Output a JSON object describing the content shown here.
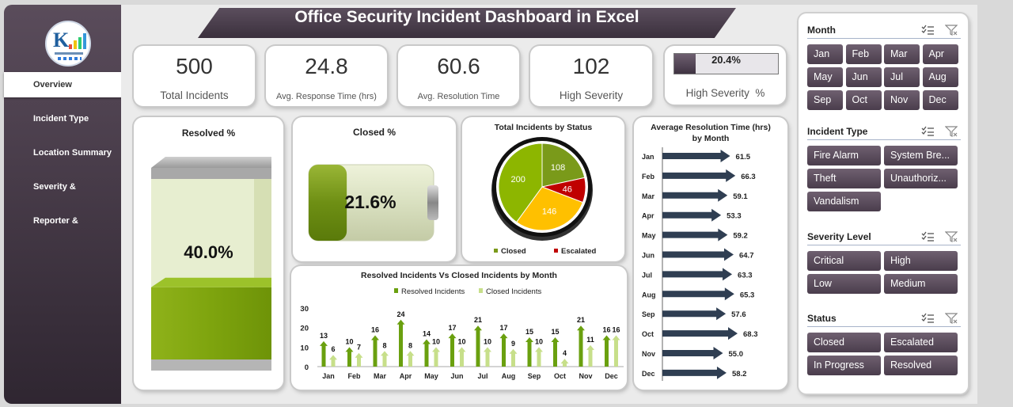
{
  "title": "Office Security Incident Dashboard in Excel",
  "nav": [
    {
      "label": "Overview",
      "active": true
    },
    {
      "label": "Incident Type"
    },
    {
      "label": "Location Summary"
    },
    {
      "label": "Severity &"
    },
    {
      "label": "Reporter &"
    }
  ],
  "kpis": [
    {
      "value": "500",
      "label": "Total Incidents"
    },
    {
      "value": "24.8",
      "label": "Avg. Response Time (hrs)"
    },
    {
      "value": "60.6",
      "label": "Avg. Resolution Time"
    },
    {
      "value": "102",
      "label": "High Severity"
    }
  ],
  "high_severity_pct": {
    "value": "20.4%",
    "fraction": 0.204,
    "label": "High Severity  %"
  },
  "resolved": {
    "title": "Resolved %",
    "value": "40.0%",
    "fraction": 0.4
  },
  "closed": {
    "title": "Closed %",
    "value": "21.6%",
    "fraction": 0.216
  },
  "colors": {
    "accent": "#4a3d4c",
    "green": "#8db600",
    "yellow": "#ffc000",
    "red": "#c00000",
    "olive": "#7a9a1a"
  },
  "chart_data": [
    {
      "type": "pie",
      "title": "Total Incidents by Status",
      "slices": [
        {
          "name": "Closed",
          "value": 108,
          "color": "#7a9a1a"
        },
        {
          "name": "Escalated",
          "value": 46,
          "color": "#c00000"
        },
        {
          "name": "",
          "value": 146,
          "color": "#ffc000"
        },
        {
          "name": "",
          "value": 200,
          "color": "#8db600"
        }
      ],
      "legend": [
        {
          "name": "Closed",
          "color": "#7a9a1a"
        },
        {
          "name": "Escalated",
          "color": "#c00000"
        }
      ],
      "legend_position": "bottom"
    },
    {
      "type": "bar",
      "title": "Average Resolution Time (hrs) by Month",
      "orientation": "horizontal",
      "categories": [
        "Jan",
        "Feb",
        "Mar",
        "Apr",
        "May",
        "Jun",
        "Jul",
        "Aug",
        "Sep",
        "Oct",
        "Nov",
        "Dec"
      ],
      "values": [
        61.5,
        66.3,
        59.1,
        53.3,
        59.2,
        64.7,
        63.3,
        65.3,
        57.6,
        68.3,
        55.0,
        58.2
      ],
      "labels": [
        "61.5",
        "66.3",
        "59.1",
        "53.3",
        "59.2",
        "64.7",
        "63.3",
        "65.3",
        "57.6",
        "68.3",
        "55.0",
        "58.2"
      ]
    },
    {
      "type": "bar",
      "title": "Resolved Incidents Vs Closed Incidents by Month",
      "categories": [
        "Jan",
        "Feb",
        "Mar",
        "Apr",
        "May",
        "Jun",
        "Jul",
        "Aug",
        "Sep",
        "Oct",
        "Nov",
        "Dec"
      ],
      "series": [
        {
          "name": "Resolved Incidents",
          "values": [
            13,
            10,
            16,
            24,
            14,
            17,
            21,
            17,
            15,
            15,
            21,
            16
          ]
        },
        {
          "name": "Closed Incidents",
          "values": [
            6,
            7,
            8,
            8,
            10,
            10,
            10,
            9,
            10,
            4,
            11,
            16
          ]
        }
      ],
      "yticks": [
        "0",
        "10",
        "20",
        "30"
      ],
      "ylim": [
        0,
        30
      ],
      "legend_position": "top"
    }
  ],
  "slicers": [
    {
      "title": "Month",
      "items": [
        "Jan",
        "Feb",
        "Mar",
        "Apr",
        "May",
        "Jun",
        "Jul",
        "Aug",
        "Sep",
        "Oct",
        "Nov",
        "Dec"
      ],
      "cols": 4
    },
    {
      "title": "Incident Type",
      "items": [
        "Fire Alarm",
        "System Bre...",
        "Theft",
        "Unauthoriz...",
        "Vandalism"
      ],
      "cols": 2
    },
    {
      "title": "Severity Level",
      "items": [
        "Critical",
        "High",
        "Low",
        "Medium"
      ],
      "cols": 2
    },
    {
      "title": "Status",
      "items": [
        "Closed",
        "Escalated",
        "In Progress",
        "Resolved"
      ],
      "cols": 2
    }
  ]
}
